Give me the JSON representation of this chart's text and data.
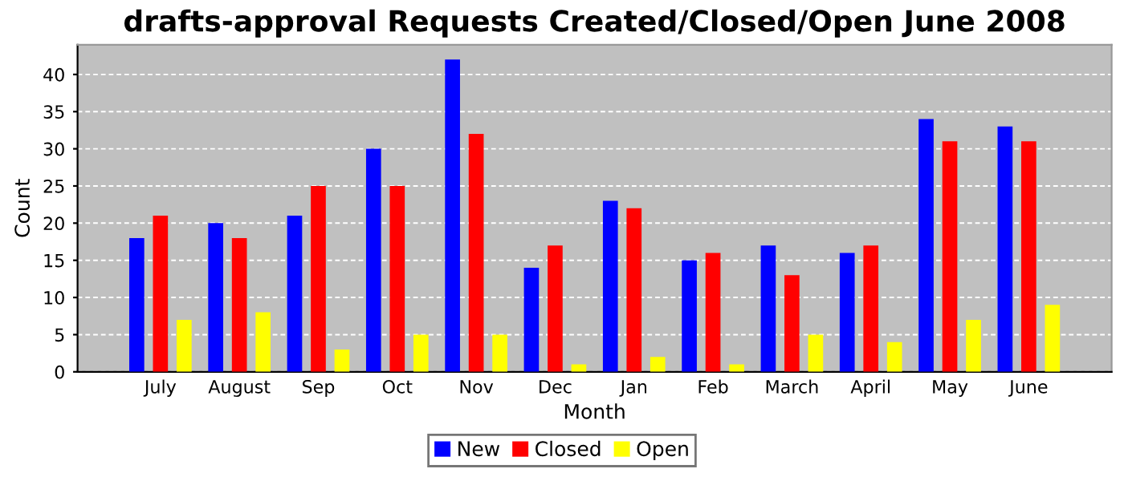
{
  "chart_data": {
    "type": "bar",
    "title": "drafts-approval Requests Created/Closed/Open June 2008",
    "xlabel": "Month",
    "ylabel": "Count",
    "categories": [
      "July",
      "August",
      "Sep",
      "Oct",
      "Nov",
      "Dec",
      "Jan",
      "Feb",
      "March",
      "April",
      "May",
      "June"
    ],
    "series": [
      {
        "name": "New",
        "color": "#0000ff",
        "values": [
          18,
          20,
          21,
          30,
          42,
          14,
          23,
          15,
          17,
          16,
          34,
          33
        ]
      },
      {
        "name": "Closed",
        "color": "#ff0000",
        "values": [
          21,
          18,
          25,
          25,
          32,
          17,
          22,
          16,
          13,
          17,
          31,
          31
        ]
      },
      {
        "name": "Open",
        "color": "#ffff00",
        "values": [
          7,
          8,
          3,
          5,
          5,
          1,
          2,
          1,
          5,
          4,
          7,
          9
        ]
      }
    ],
    "ylim": [
      0,
      44
    ],
    "yticks": [
      0,
      5,
      10,
      15,
      20,
      25,
      30,
      35,
      40
    ],
    "grid": "y",
    "legend": "bottom"
  }
}
